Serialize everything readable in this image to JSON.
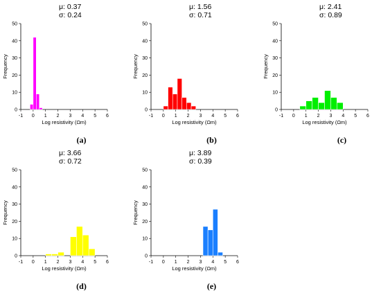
{
  "chart_data": [
    {
      "type": "bar",
      "panel_label": "(a)",
      "stats": [
        "μ: 0.37",
        "σ: 0.24"
      ],
      "color": "#ff00ff",
      "xlabel": "Log resistivity (Ωm)",
      "ylabel": "Frequency",
      "xlim": [
        -1,
        6
      ],
      "ylim": [
        0,
        50
      ],
      "xticks": [
        "-1",
        "0",
        "1",
        "2",
        "3",
        "4",
        "5",
        "6"
      ],
      "yticks": [
        "0",
        "10",
        "20",
        "30",
        "40",
        "50"
      ],
      "bin_width": 0.25,
      "bins": [
        {
          "x0": -0.25,
          "value": 3
        },
        {
          "x0": 0.0,
          "value": 42
        },
        {
          "x0": 0.25,
          "value": 9
        },
        {
          "x0": 0.5,
          "value": 1
        }
      ]
    },
    {
      "type": "bar",
      "panel_label": "(b)",
      "stats": [
        "μ: 1.56",
        "σ: 0.71"
      ],
      "color": "#ff0000",
      "xlabel": "Log resistivity (Ωm)",
      "ylabel": "Frequency",
      "xlim": [
        -1,
        6
      ],
      "ylim": [
        0,
        50
      ],
      "xticks": [
        "-1",
        "0",
        "1",
        "2",
        "3",
        "4",
        "5",
        "6"
      ],
      "yticks": [
        "0",
        "10",
        "20",
        "30",
        "40",
        "50"
      ],
      "bin_width": 0.375,
      "bins": [
        {
          "x0": 0.0,
          "value": 2
        },
        {
          "x0": 0.375,
          "value": 13
        },
        {
          "x0": 0.75,
          "value": 9
        },
        {
          "x0": 1.125,
          "value": 18
        },
        {
          "x0": 1.5,
          "value": 7
        },
        {
          "x0": 1.875,
          "value": 4
        },
        {
          "x0": 2.25,
          "value": 2
        }
      ]
    },
    {
      "type": "bar",
      "panel_label": "(c)",
      "stats": [
        "μ: 2.41",
        "σ: 0.89"
      ],
      "color": "#00ee00",
      "xlabel": "Log resistivity (Ωm)",
      "ylabel": "Frequency",
      "xlim": [
        -1,
        6
      ],
      "ylim": [
        0,
        50
      ],
      "xticks": [
        "-1",
        "0",
        "1",
        "2",
        "3",
        "4",
        "5",
        "6"
      ],
      "yticks": [
        "0",
        "10",
        "20",
        "30",
        "40",
        "50"
      ],
      "bin_width": 0.5,
      "bins": [
        {
          "x0": 0.5,
          "value": 2
        },
        {
          "x0": 1.0,
          "value": 5
        },
        {
          "x0": 1.5,
          "value": 7
        },
        {
          "x0": 2.0,
          "value": 4
        },
        {
          "x0": 2.5,
          "value": 11
        },
        {
          "x0": 3.0,
          "value": 7
        },
        {
          "x0": 3.5,
          "value": 4
        }
      ]
    },
    {
      "type": "bar",
      "panel_label": "(d)",
      "stats": [
        "μ: 3.66",
        "σ: 0.72"
      ],
      "color": "#ffff00",
      "xlabel": "Log resistivity (Ωm)",
      "ylabel": "Frequency",
      "xlim": [
        -1,
        6
      ],
      "ylim": [
        0,
        50
      ],
      "xticks": [
        "-1",
        "0",
        "1",
        "2",
        "3",
        "4",
        "5",
        "6"
      ],
      "yticks": [
        "0",
        "10",
        "20",
        "30",
        "40",
        "50"
      ],
      "bin_width": 0.5,
      "bins": [
        {
          "x0": 1.0,
          "value": 1
        },
        {
          "x0": 1.5,
          "value": 1
        },
        {
          "x0": 2.0,
          "value": 2
        },
        {
          "x0": 2.5,
          "value": 0
        },
        {
          "x0": 3.0,
          "value": 11
        },
        {
          "x0": 3.5,
          "value": 17
        },
        {
          "x0": 4.0,
          "value": 12
        },
        {
          "x0": 4.5,
          "value": 4
        }
      ]
    },
    {
      "type": "bar",
      "panel_label": "(e)",
      "stats": [
        "μ: 3.89",
        "σ: 0.39"
      ],
      "color": "#1a7fff",
      "xlabel": "Log resistivity (Ωm)",
      "ylabel": "Frequency",
      "xlim": [
        -1,
        6
      ],
      "ylim": [
        0,
        50
      ],
      "xticks": [
        "-1",
        "0",
        "1",
        "2",
        "3",
        "4",
        "5",
        "6"
      ],
      "yticks": [
        "0",
        "10",
        "20",
        "30",
        "40",
        "50"
      ],
      "bin_width": 0.4,
      "bins": [
        {
          "x0": 3.2,
          "value": 17
        },
        {
          "x0": 3.6,
          "value": 15
        },
        {
          "x0": 4.0,
          "value": 27
        },
        {
          "x0": 4.4,
          "value": 2
        }
      ]
    }
  ]
}
